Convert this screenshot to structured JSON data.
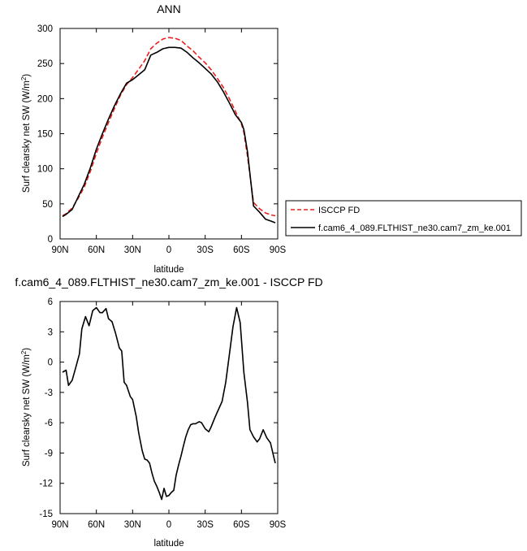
{
  "chart_data": [
    {
      "type": "line",
      "title": "ANN",
      "xlabel": "latitude",
      "ylabel": "Surf clearsky net SW (W/m",
      "ylabel_sup": "2",
      "ylabel_close": ")",
      "xlim": [
        -90,
        90
      ],
      "ylim": [
        0,
        300
      ],
      "x_ticks": [
        -90,
        -60,
        -30,
        0,
        30,
        60,
        90
      ],
      "x_tick_labels": [
        "90N",
        "60N",
        "30N",
        "0",
        "30S",
        "60S",
        "90S"
      ],
      "y_ticks": [
        0,
        50,
        100,
        150,
        200,
        250,
        300
      ],
      "y_tick_labels": [
        "0",
        "50",
        "100",
        "150",
        "200",
        "250",
        "300"
      ],
      "legend_placement": "right, outside plot",
      "series": [
        {
          "name": "ISCCP FD",
          "color": "#e8211d",
          "dash": "dashed",
          "x": [
            -88,
            -85,
            -80,
            -75,
            -70,
            -65,
            -60,
            -55,
            -50,
            -45,
            -40,
            -35,
            -30,
            -25,
            -20,
            -15,
            -10,
            -5,
            0,
            5,
            10,
            15,
            20,
            25,
            30,
            35,
            40,
            45,
            50,
            55,
            60,
            62,
            65,
            70,
            75,
            80,
            85,
            88
          ],
          "y": [
            33,
            36,
            44,
            58,
            74,
            96,
            122,
            145,
            166,
            186,
            205,
            220,
            230,
            242,
            254,
            271,
            279,
            285,
            287,
            286,
            283,
            275,
            268,
            259,
            251,
            241,
            229,
            216,
            200,
            182,
            164,
            152,
            118,
            52,
            43,
            37,
            34,
            33
          ]
        },
        {
          "name": "f.cam6_4_089.FLTHIST_ne30.cam7_zm_ke.001",
          "color": "#000000",
          "dash": "solid",
          "x": [
            -88,
            -85,
            -80,
            -75,
            -70,
            -65,
            -60,
            -55,
            -50,
            -45,
            -40,
            -35,
            -30,
            -25,
            -20,
            -15,
            -10,
            -5,
            0,
            5,
            10,
            15,
            20,
            25,
            30,
            35,
            40,
            45,
            50,
            55,
            60,
            62,
            65,
            70,
            75,
            80,
            85,
            88
          ],
          "y": [
            32,
            35,
            42,
            60,
            78,
            101,
            128,
            150,
            171,
            190,
            207,
            222,
            227,
            234,
            241,
            262,
            266,
            271,
            273,
            273,
            272,
            266,
            258,
            251,
            243,
            235,
            224,
            210,
            194,
            177,
            166,
            156,
            124,
            47,
            38,
            28,
            25,
            23
          ]
        }
      ]
    },
    {
      "type": "line",
      "title": "f.cam6_4_089.FLTHIST_ne30.cam7_zm_ke.001 - ISCCP FD",
      "xlabel": "latitude",
      "ylabel": "Surf clearsky net SW (W/m",
      "ylabel_sup": "2",
      "ylabel_close": ")",
      "xlim": [
        -90,
        90
      ],
      "ylim": [
        -15,
        6
      ],
      "x_ticks": [
        -90,
        -60,
        -30,
        0,
        30,
        60,
        90
      ],
      "x_tick_labels": [
        "90N",
        "60N",
        "30N",
        "0",
        "30S",
        "60S",
        "90S"
      ],
      "y_ticks": [
        -15,
        -12,
        -9,
        -6,
        -3,
        0,
        3,
        6
      ],
      "y_tick_labels": [
        "-15",
        "-12",
        "-9",
        "-6",
        "-3",
        "0",
        "3",
        "6"
      ],
      "series": [
        {
          "color": "#000000",
          "dash": "solid",
          "x": [
            -88,
            -85,
            -83,
            -80,
            -77,
            -74,
            -72,
            -69,
            -66,
            -63,
            -60,
            -57,
            -55,
            -52,
            -50,
            -47,
            -44,
            -41,
            -39,
            -37,
            -35,
            -32,
            -30,
            -27,
            -25,
            -22,
            -20,
            -18,
            -16,
            -14,
            -12,
            -10,
            -8,
            -6,
            -4,
            -2,
            0,
            2,
            4,
            6,
            8,
            10,
            12,
            14,
            16,
            18,
            20,
            22,
            25,
            27,
            30,
            33,
            35,
            38,
            41,
            44,
            47,
            50,
            53,
            56,
            59,
            62,
            65,
            67,
            70,
            73,
            75,
            78,
            81,
            84,
            86,
            88
          ],
          "y": [
            -1.0,
            -0.8,
            -2.3,
            -1.8,
            -0.5,
            0.8,
            3.3,
            4.5,
            3.6,
            5.1,
            5.4,
            4.9,
            4.9,
            5.3,
            4.3,
            4.0,
            2.8,
            1.4,
            1.1,
            -2.0,
            -2.3,
            -3.4,
            -3.7,
            -5.4,
            -7.0,
            -8.8,
            -9.6,
            -9.7,
            -10.0,
            -11.0,
            -11.8,
            -12.3,
            -12.9,
            -13.6,
            -12.5,
            -13.3,
            -13.2,
            -12.9,
            -12.7,
            -11.2,
            -10.2,
            -9.3,
            -8.3,
            -7.4,
            -6.7,
            -6.2,
            -6.1,
            -6.1,
            -5.9,
            -6.0,
            -6.6,
            -6.9,
            -6.4,
            -5.5,
            -4.7,
            -3.9,
            -2.0,
            0.7,
            3.5,
            5.4,
            3.9,
            -1.0,
            -4.0,
            -6.7,
            -7.4,
            -7.9,
            -7.6,
            -6.7,
            -7.5,
            -8.0,
            -9.0,
            -10.0
          ]
        }
      ]
    }
  ]
}
